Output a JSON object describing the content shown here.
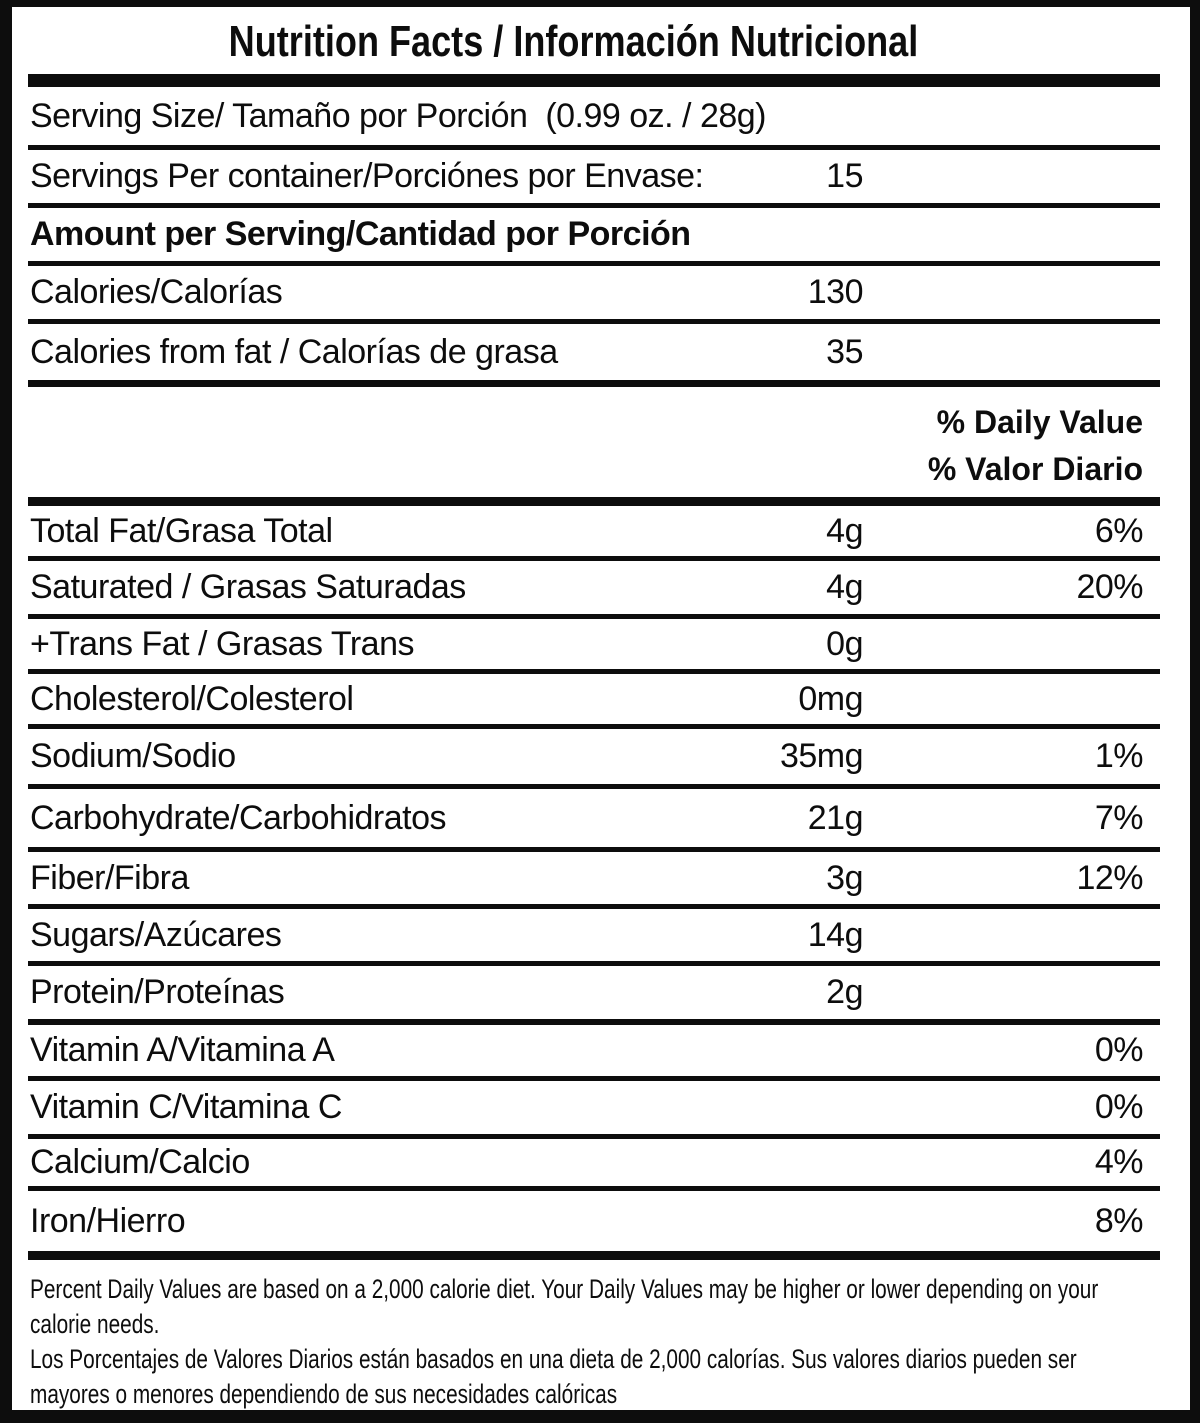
{
  "label": {
    "title": "Nutrition Facts / Información Nutricional",
    "rows": [
      {
        "id": "serving-size",
        "label": "Serving Size/ Tamaño por Porción  (0.99 oz. / 28g)",
        "value": "",
        "pct": ""
      },
      {
        "id": "servings-per-container",
        "label": "Servings Per container/Porciónes por Envase:",
        "value": "15",
        "pct": ""
      },
      {
        "id": "amount-per-serving",
        "label": "Amount per Serving/Cantidad por Porción",
        "value": "",
        "pct": ""
      },
      {
        "id": "calories",
        "label": "Calories/Calorías",
        "value": "130",
        "pct": ""
      },
      {
        "id": "calories-from-fat",
        "label": "Calories from fat / Calorías de grasa",
        "value": "35",
        "pct": ""
      },
      {
        "id": "total-fat",
        "label": "Total Fat/Grasa Total",
        "value": "4g",
        "pct": "6%"
      },
      {
        "id": "saturated-fat",
        "label": "Saturated / Grasas Saturadas",
        "value": "4g",
        "pct": "20%"
      },
      {
        "id": "trans-fat",
        "label": "+Trans Fat / Grasas Trans",
        "value": "0g",
        "pct": ""
      },
      {
        "id": "cholesterol",
        "label": "Cholesterol/Colesterol",
        "value": "0mg",
        "pct": ""
      },
      {
        "id": "sodium",
        "label": "Sodium/Sodio",
        "value": "35mg",
        "pct": "1%"
      },
      {
        "id": "carbohydrate",
        "label": "Carbohydrate/Carbohidratos",
        "value": "21g",
        "pct": "7%"
      },
      {
        "id": "fiber",
        "label": "Fiber/Fibra",
        "value": "3g",
        "pct": "12%"
      },
      {
        "id": "sugars",
        "label": "Sugars/Azúcares",
        "value": "14g",
        "pct": ""
      },
      {
        "id": "protein",
        "label": "Protein/Proteínas",
        "value": "2g",
        "pct": ""
      },
      {
        "id": "vitamin-a",
        "label": "Vitamin A/Vitamina A",
        "value": "",
        "pct": "0%"
      },
      {
        "id": "vitamin-c",
        "label": "Vitamin C/Vitamina C",
        "value": "",
        "pct": "0%"
      },
      {
        "id": "calcium",
        "label": "Calcium/Calcio",
        "value": "",
        "pct": "4%"
      },
      {
        "id": "iron",
        "label": "Iron/Hierro",
        "value": "",
        "pct": "8%"
      }
    ],
    "daily_value_header": {
      "line1": "% Daily Value",
      "line2": "% Valor Diario"
    },
    "footnote": {
      "lines": [
        "Percent Daily Values are based on a 2,000 calorie diet. Your Daily Values may be higher or lower depending on your",
        "calorie needs.",
        "Los Porcentajes de Valores Diarios están basados en una dieta de 2,000 calorías. Sus valores diarios pueden ser",
        "mayores o menores dependiendo de sus necesidades calóricas"
      ]
    },
    "colors": {
      "text": "#0d0d0d",
      "background": "#ffffff",
      "border": "#0d0d0d"
    }
  }
}
